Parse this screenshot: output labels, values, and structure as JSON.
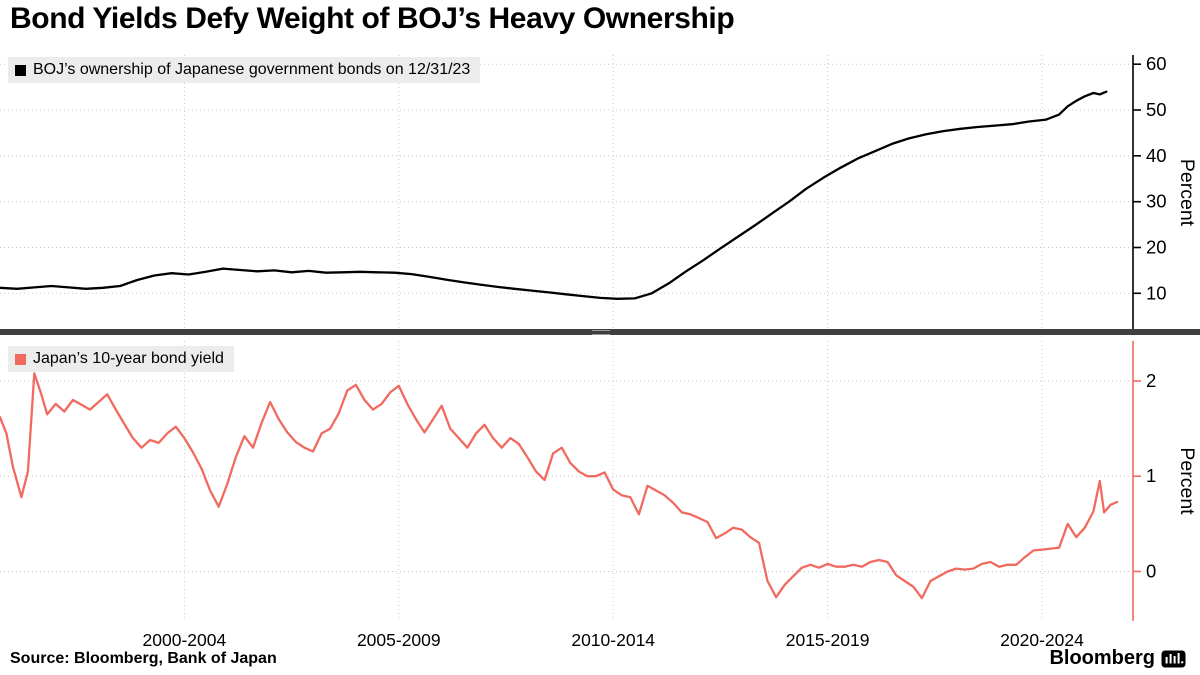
{
  "title": "Bond Yields Defy Weight of BOJ’s Heavy Ownership",
  "footer": {
    "source": "Source: Bloomberg, Bank of Japan",
    "brand": "Bloomberg"
  },
  "colors": {
    "boj_line": "#000000",
    "yield_line": "#f16a60",
    "divider": "#3f3f3f",
    "grid": "#c8c8c8",
    "legend_bg": "#ececec"
  },
  "chart_data": [
    {
      "type": "line",
      "legend": "BOJ’s ownership of Japanese government bonds on 12/31/23",
      "legend_color": "#000000",
      "legend_position": "top-left",
      "ylabel": "Percent",
      "ylim": [
        2,
        62
      ],
      "yticks": [
        10,
        20,
        30,
        40,
        50,
        60
      ],
      "xlim": [
        1998.2,
        2024.6
      ],
      "grid": "dotted",
      "line_color": "#000000",
      "axis_color": "#000000",
      "points": [
        [
          1998.2,
          11.2
        ],
        [
          1998.6,
          11.0
        ],
        [
          1999.0,
          11.3
        ],
        [
          1999.4,
          11.6
        ],
        [
          1999.8,
          11.3
        ],
        [
          2000.2,
          11.0
        ],
        [
          2000.6,
          11.2
        ],
        [
          2001.0,
          11.6
        ],
        [
          2001.4,
          12.9
        ],
        [
          2001.8,
          13.9
        ],
        [
          2002.2,
          14.4
        ],
        [
          2002.6,
          14.1
        ],
        [
          2003.0,
          14.7
        ],
        [
          2003.4,
          15.4
        ],
        [
          2003.8,
          15.1
        ],
        [
          2004.2,
          14.8
        ],
        [
          2004.6,
          15.0
        ],
        [
          2005.0,
          14.6
        ],
        [
          2005.4,
          14.9
        ],
        [
          2005.8,
          14.5
        ],
        [
          2006.2,
          14.6
        ],
        [
          2006.6,
          14.7
        ],
        [
          2007.0,
          14.6
        ],
        [
          2007.4,
          14.5
        ],
        [
          2007.8,
          14.2
        ],
        [
          2008.2,
          13.6
        ],
        [
          2008.6,
          13.0
        ],
        [
          2009.0,
          12.4
        ],
        [
          2009.4,
          11.9
        ],
        [
          2009.8,
          11.4
        ],
        [
          2010.2,
          11.0
        ],
        [
          2010.6,
          10.6
        ],
        [
          2011.0,
          10.2
        ],
        [
          2011.4,
          9.8
        ],
        [
          2011.8,
          9.4
        ],
        [
          2012.2,
          9.0
        ],
        [
          2012.6,
          8.8
        ],
        [
          2013.0,
          8.9
        ],
        [
          2013.4,
          10.0
        ],
        [
          2013.8,
          12.2
        ],
        [
          2014.2,
          14.8
        ],
        [
          2014.6,
          17.2
        ],
        [
          2015.0,
          19.8
        ],
        [
          2015.4,
          22.3
        ],
        [
          2015.8,
          24.8
        ],
        [
          2016.2,
          27.4
        ],
        [
          2016.6,
          30.0
        ],
        [
          2017.0,
          32.8
        ],
        [
          2017.4,
          35.2
        ],
        [
          2017.8,
          37.4
        ],
        [
          2018.2,
          39.4
        ],
        [
          2018.6,
          41.0
        ],
        [
          2019.0,
          42.6
        ],
        [
          2019.4,
          43.8
        ],
        [
          2019.8,
          44.7
        ],
        [
          2020.2,
          45.4
        ],
        [
          2020.6,
          45.9
        ],
        [
          2021.0,
          46.3
        ],
        [
          2021.4,
          46.6
        ],
        [
          2021.8,
          46.9
        ],
        [
          2022.2,
          47.5
        ],
        [
          2022.6,
          47.9
        ],
        [
          2022.9,
          49.0
        ],
        [
          2023.1,
          50.8
        ],
        [
          2023.3,
          52.0
        ],
        [
          2023.5,
          53.0
        ],
        [
          2023.7,
          53.7
        ],
        [
          2023.85,
          53.4
        ],
        [
          2024.0,
          54.0
        ]
      ]
    },
    {
      "type": "line",
      "legend": "Japan’s 10-year bond yield",
      "legend_color": "#f16a60",
      "legend_position": "top-left",
      "ylabel": "Percent",
      "ylim": [
        -0.52,
        2.42
      ],
      "yticks": [
        0,
        1,
        2
      ],
      "xlim": [
        1998.2,
        2024.6
      ],
      "grid": "dotted",
      "line_color": "#f16a60",
      "axis_color": "#f16a60",
      "xticklabels": [
        {
          "label": "2000-2004",
          "x": 2002.5
        },
        {
          "label": "2005-2009",
          "x": 2007.5
        },
        {
          "label": "2010-2014",
          "x": 2012.5
        },
        {
          "label": "2015-2019",
          "x": 2017.5
        },
        {
          "label": "2020-2024",
          "x": 2022.5
        }
      ],
      "points": [
        [
          1998.2,
          1.62
        ],
        [
          1998.35,
          1.45
        ],
        [
          1998.5,
          1.1
        ],
        [
          1998.7,
          0.78
        ],
        [
          1998.85,
          1.05
        ],
        [
          1999.0,
          2.08
        ],
        [
          1999.15,
          1.88
        ],
        [
          1999.3,
          1.65
        ],
        [
          1999.5,
          1.76
        ],
        [
          1999.7,
          1.68
        ],
        [
          1999.9,
          1.8
        ],
        [
          2000.1,
          1.75
        ],
        [
          2000.3,
          1.7
        ],
        [
          2000.5,
          1.78
        ],
        [
          2000.7,
          1.86
        ],
        [
          2000.9,
          1.7
        ],
        [
          2001.1,
          1.55
        ],
        [
          2001.3,
          1.4
        ],
        [
          2001.5,
          1.3
        ],
        [
          2001.7,
          1.38
        ],
        [
          2001.9,
          1.35
        ],
        [
          2002.1,
          1.45
        ],
        [
          2002.3,
          1.52
        ],
        [
          2002.5,
          1.4
        ],
        [
          2002.7,
          1.25
        ],
        [
          2002.9,
          1.08
        ],
        [
          2003.1,
          0.85
        ],
        [
          2003.3,
          0.68
        ],
        [
          2003.5,
          0.92
        ],
        [
          2003.7,
          1.2
        ],
        [
          2003.9,
          1.42
        ],
        [
          2004.1,
          1.3
        ],
        [
          2004.3,
          1.56
        ],
        [
          2004.5,
          1.78
        ],
        [
          2004.7,
          1.6
        ],
        [
          2004.9,
          1.46
        ],
        [
          2005.1,
          1.36
        ],
        [
          2005.3,
          1.3
        ],
        [
          2005.5,
          1.26
        ],
        [
          2005.7,
          1.45
        ],
        [
          2005.9,
          1.5
        ],
        [
          2006.1,
          1.66
        ],
        [
          2006.3,
          1.9
        ],
        [
          2006.5,
          1.96
        ],
        [
          2006.7,
          1.8
        ],
        [
          2006.9,
          1.7
        ],
        [
          2007.1,
          1.76
        ],
        [
          2007.3,
          1.88
        ],
        [
          2007.5,
          1.95
        ],
        [
          2007.7,
          1.76
        ],
        [
          2007.9,
          1.6
        ],
        [
          2008.1,
          1.46
        ],
        [
          2008.3,
          1.6
        ],
        [
          2008.5,
          1.74
        ],
        [
          2008.7,
          1.5
        ],
        [
          2008.9,
          1.4
        ],
        [
          2009.1,
          1.3
        ],
        [
          2009.3,
          1.45
        ],
        [
          2009.5,
          1.54
        ],
        [
          2009.7,
          1.4
        ],
        [
          2009.9,
          1.3
        ],
        [
          2010.1,
          1.4
        ],
        [
          2010.3,
          1.34
        ],
        [
          2010.5,
          1.2
        ],
        [
          2010.7,
          1.05
        ],
        [
          2010.9,
          0.96
        ],
        [
          2011.1,
          1.24
        ],
        [
          2011.3,
          1.3
        ],
        [
          2011.5,
          1.14
        ],
        [
          2011.7,
          1.05
        ],
        [
          2011.9,
          1.0
        ],
        [
          2012.1,
          1.0
        ],
        [
          2012.3,
          1.04
        ],
        [
          2012.5,
          0.86
        ],
        [
          2012.7,
          0.8
        ],
        [
          2012.9,
          0.78
        ],
        [
          2013.1,
          0.6
        ],
        [
          2013.3,
          0.9
        ],
        [
          2013.5,
          0.85
        ],
        [
          2013.7,
          0.8
        ],
        [
          2013.9,
          0.72
        ],
        [
          2014.1,
          0.62
        ],
        [
          2014.3,
          0.6
        ],
        [
          2014.5,
          0.56
        ],
        [
          2014.7,
          0.52
        ],
        [
          2014.9,
          0.35
        ],
        [
          2015.1,
          0.4
        ],
        [
          2015.3,
          0.46
        ],
        [
          2015.5,
          0.44
        ],
        [
          2015.7,
          0.36
        ],
        [
          2015.9,
          0.3
        ],
        [
          2016.1,
          -0.1
        ],
        [
          2016.3,
          -0.27
        ],
        [
          2016.5,
          -0.14
        ],
        [
          2016.7,
          -0.05
        ],
        [
          2016.9,
          0.04
        ],
        [
          2017.1,
          0.07
        ],
        [
          2017.3,
          0.04
        ],
        [
          2017.5,
          0.08
        ],
        [
          2017.7,
          0.05
        ],
        [
          2017.9,
          0.05
        ],
        [
          2018.1,
          0.07
        ],
        [
          2018.3,
          0.05
        ],
        [
          2018.5,
          0.1
        ],
        [
          2018.7,
          0.12
        ],
        [
          2018.9,
          0.1
        ],
        [
          2019.1,
          -0.04
        ],
        [
          2019.3,
          -0.1
        ],
        [
          2019.5,
          -0.16
        ],
        [
          2019.7,
          -0.28
        ],
        [
          2019.9,
          -0.1
        ],
        [
          2020.1,
          -0.05
        ],
        [
          2020.3,
          0.0
        ],
        [
          2020.5,
          0.03
        ],
        [
          2020.7,
          0.02
        ],
        [
          2020.9,
          0.03
        ],
        [
          2021.1,
          0.08
        ],
        [
          2021.3,
          0.1
        ],
        [
          2021.5,
          0.05
        ],
        [
          2021.7,
          0.07
        ],
        [
          2021.9,
          0.07
        ],
        [
          2022.1,
          0.15
        ],
        [
          2022.3,
          0.22
        ],
        [
          2022.5,
          0.23
        ],
        [
          2022.7,
          0.24
        ],
        [
          2022.9,
          0.25
        ],
        [
          2023.1,
          0.5
        ],
        [
          2023.3,
          0.36
        ],
        [
          2023.5,
          0.46
        ],
        [
          2023.7,
          0.63
        ],
        [
          2023.85,
          0.95
        ],
        [
          2023.95,
          0.62
        ],
        [
          2024.1,
          0.7
        ],
        [
          2024.25,
          0.73
        ]
      ]
    }
  ]
}
